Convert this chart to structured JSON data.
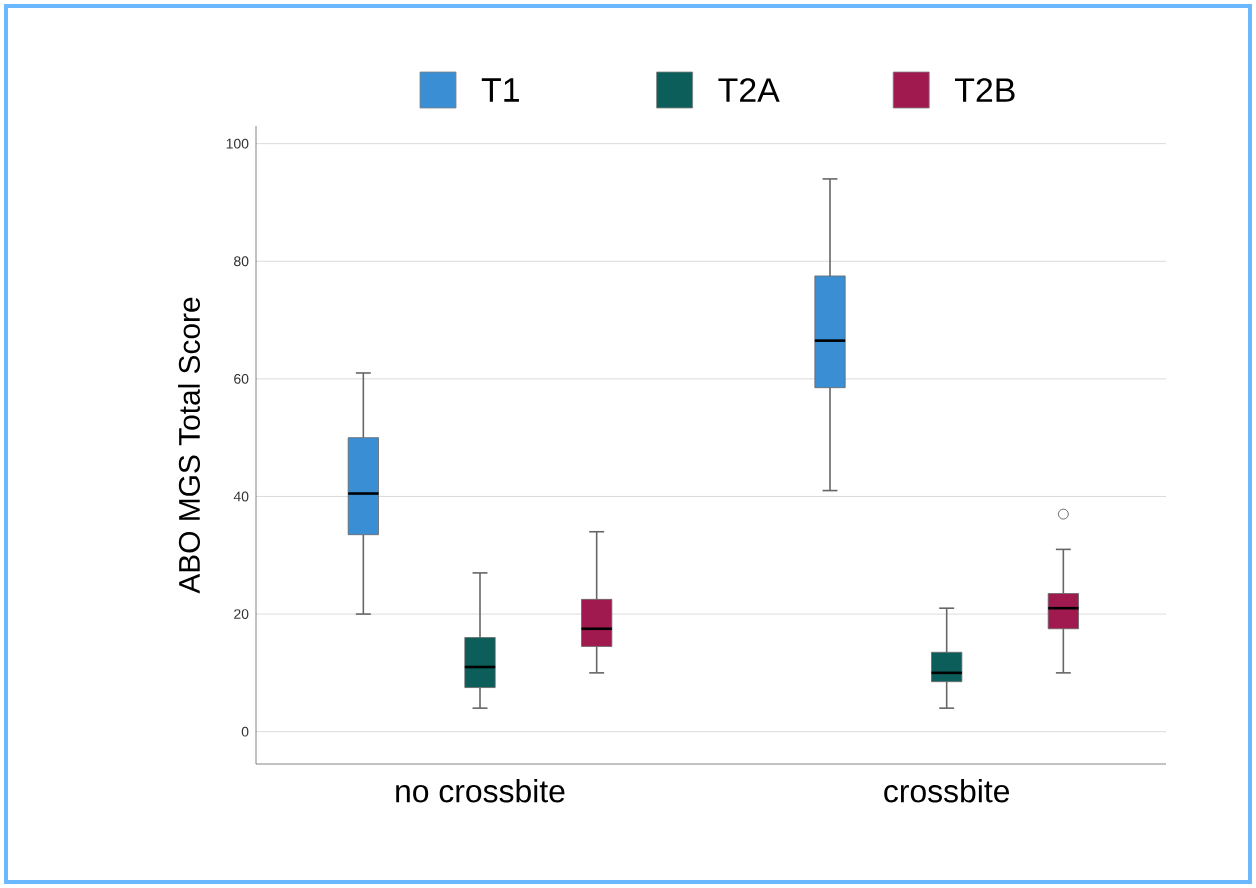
{
  "chart_data": {
    "type": "box",
    "ylabel": "ABO MGS Total Score",
    "categories": [
      "no crossbite",
      "crossbite"
    ],
    "ylim": [
      -5.5,
      103
    ],
    "yticks": [
      0,
      20,
      40,
      60,
      80,
      100
    ],
    "grid": "y",
    "legend": "top",
    "series": [
      {
        "name": "T1",
        "color": "#3a8fd4",
        "boxes": [
          {
            "low": 20,
            "q1": 33.5,
            "median": 40.5,
            "q3": 50,
            "high": 61
          },
          {
            "low": 41,
            "q1": 58.5,
            "median": 66.5,
            "q3": 77.5,
            "high": 94
          }
        ]
      },
      {
        "name": "T2A",
        "color": "#0b5e5a",
        "boxes": [
          {
            "low": 4,
            "q1": 7.5,
            "median": 11,
            "q3": 16,
            "high": 27
          },
          {
            "low": 4,
            "q1": 8.5,
            "median": 10,
            "q3": 13.5,
            "high": 21
          }
        ]
      },
      {
        "name": "T2B",
        "color": "#a01a50",
        "boxes": [
          {
            "low": 10,
            "q1": 14.5,
            "median": 17.5,
            "q3": 22.5,
            "high": 34
          },
          {
            "low": 10,
            "q1": 17.5,
            "median": 21,
            "q3": 23.5,
            "high": 31,
            "outliers": [
              37
            ]
          }
        ]
      }
    ]
  }
}
